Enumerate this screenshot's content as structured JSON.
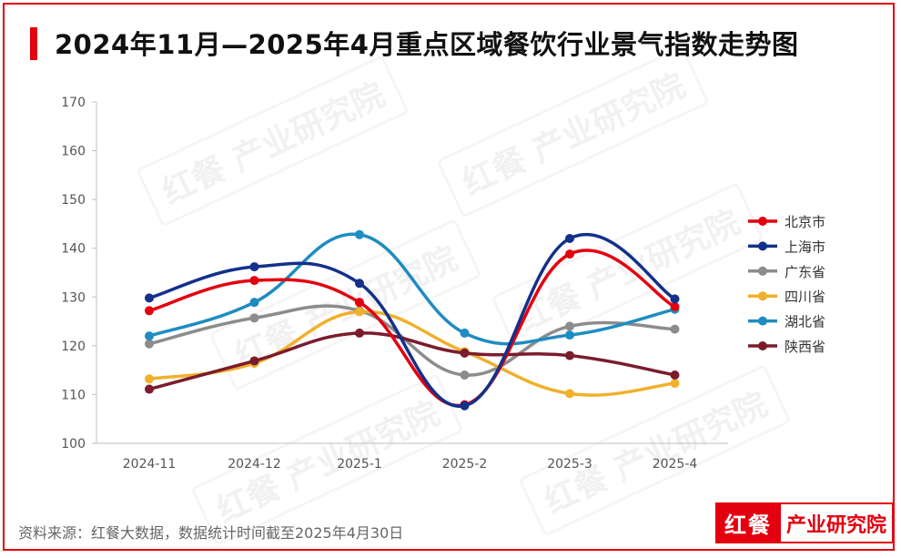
{
  "title": "2024年11月—2025年4月重点区域餐饮行业景气指数走势图",
  "source": "资料来源：红餐大数据，数据统计时间截至2025年4月30日",
  "brand": {
    "logo": "红餐",
    "name": "产业研究院"
  },
  "watermark": "红餐 产业研究院",
  "colors": {
    "accent": "#e3000f"
  },
  "chart_data": {
    "type": "line",
    "categories": [
      "2024-11",
      "2024-12",
      "2025-1",
      "2025-2",
      "2025-3",
      "2025-4"
    ],
    "ylim": [
      100,
      170
    ],
    "yticks": [
      100,
      110,
      120,
      130,
      140,
      150,
      160,
      170
    ],
    "grid": false,
    "legend_position": "right",
    "series": [
      {
        "name": "北京市",
        "color": "#e3000f",
        "values": [
          127.2,
          133.4,
          128.9,
          107.9,
          138.8,
          128.0
        ]
      },
      {
        "name": "上海市",
        "color": "#13308a",
        "values": [
          129.8,
          136.2,
          132.8,
          107.7,
          142.0,
          129.6
        ]
      },
      {
        "name": "广东省",
        "color": "#8c8c8c",
        "values": [
          120.4,
          125.7,
          127.2,
          114.0,
          124.0,
          123.4
        ]
      },
      {
        "name": "四川省",
        "color": "#f0b02b",
        "values": [
          113.2,
          116.4,
          127.0,
          118.8,
          110.2,
          112.3
        ]
      },
      {
        "name": "湖北省",
        "color": "#1f8cc1",
        "values": [
          122.0,
          128.9,
          142.8,
          122.6,
          122.2,
          127.5
        ]
      },
      {
        "name": "陕西省",
        "color": "#7a1c2c",
        "values": [
          111.1,
          116.9,
          122.6,
          118.5,
          118.0,
          114.0
        ]
      }
    ]
  }
}
